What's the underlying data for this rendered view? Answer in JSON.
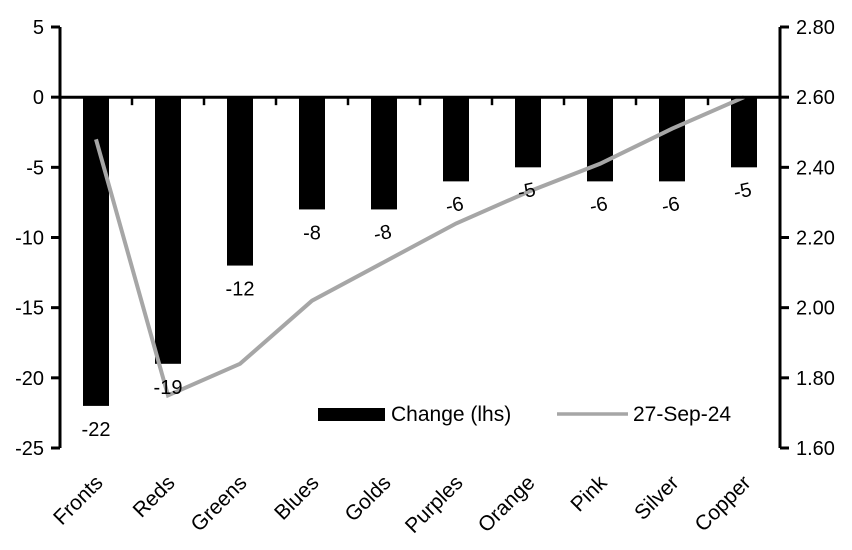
{
  "chart_data": {
    "type": "bar",
    "subtype": "dual-axis-bar-and-line",
    "categories": [
      "Fronts",
      "Reds",
      "Greens",
      "Blues",
      "Golds",
      "Purples",
      "Orange",
      "Pink",
      "Silver",
      "Copper"
    ],
    "series": [
      {
        "name": "Change (lhs)",
        "type": "bar",
        "axis": "left",
        "color": "#000000",
        "values": [
          -22,
          -19,
          -12,
          -8,
          -8,
          -6,
          -5,
          -6,
          -6,
          -5
        ]
      },
      {
        "name": "27-Sep-24",
        "type": "line",
        "axis": "right",
        "color": "#a6a6a6",
        "values": [
          2.48,
          1.75,
          1.84,
          2.02,
          2.13,
          2.24,
          2.33,
          2.41,
          2.51,
          2.6
        ]
      }
    ],
    "data_labels": [
      "-22",
      "-19",
      "-12",
      "-8",
      "-8",
      "-6",
      "-5",
      "-6",
      "-6",
      "-5"
    ],
    "left_axis": {
      "min": -25,
      "max": 5,
      "step": 5,
      "ticks": [
        "5",
        "0",
        "-5",
        "-10",
        "-15",
        "-20",
        "-25"
      ]
    },
    "right_axis": {
      "min": 1.6,
      "max": 2.8,
      "step": 0.2,
      "ticks": [
        "2.80",
        "2.60",
        "2.40",
        "2.20",
        "2.00",
        "1.80",
        "1.60"
      ]
    },
    "legend": {
      "position": "bottom-center-inside",
      "entries": [
        "Change (lhs)",
        "27-Sep-24"
      ]
    },
    "grid": "off",
    "background": "#ffffff",
    "axis_color": "#000000"
  }
}
